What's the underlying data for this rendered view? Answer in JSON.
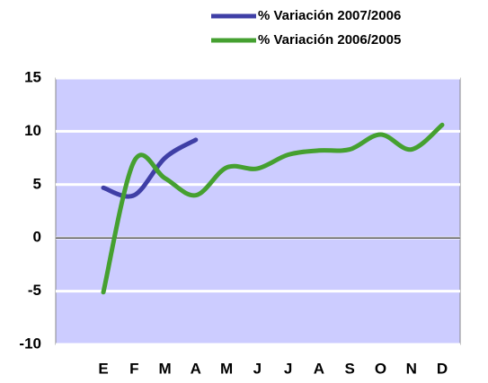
{
  "chart_data": {
    "type": "line",
    "categories": [
      "E",
      "F",
      "M",
      "A",
      "M",
      "J",
      "J",
      "A",
      "S",
      "O",
      "N",
      "D"
    ],
    "series": [
      {
        "name": "% Variación 2007/2006",
        "color": "#3f3fa6",
        "values": [
          4.7,
          4.0,
          7.5,
          9.2,
          null,
          null,
          null,
          null,
          null,
          null,
          null,
          null
        ]
      },
      {
        "name": "% Variación 2006/2005",
        "color": "#45a030",
        "values": [
          -5.1,
          7.2,
          5.6,
          4.0,
          6.6,
          6.5,
          7.8,
          8.2,
          8.3,
          9.7,
          8.3,
          10.6
        ]
      }
    ],
    "ylim": [
      -10,
      15
    ],
    "yticks": [
      -10,
      -5,
      0,
      5,
      10,
      15
    ],
    "grid": true
  }
}
